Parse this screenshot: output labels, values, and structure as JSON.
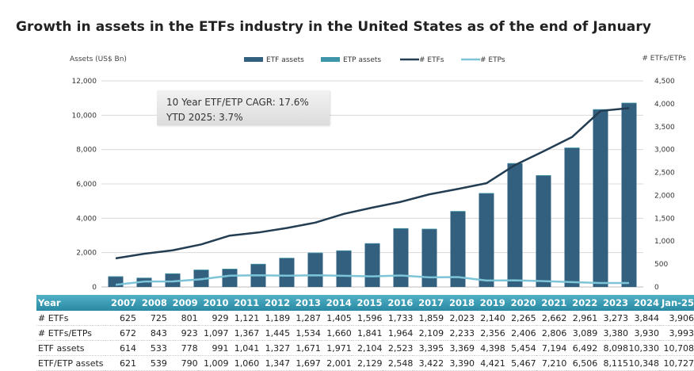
{
  "title": "Growth in assets in the ETFs industry in the United States as of the end of January",
  "annotation": {
    "line1": "10 Year ETF/ETP CAGR: 17.6%",
    "line2": "YTD 2025: 3.7%"
  },
  "colors": {
    "etf_assets": "#34607f",
    "etp_assets": "#3e94a8",
    "num_etfs": "#233d53",
    "num_etps": "#7cc4d6",
    "table_header": "#3b9db5"
  },
  "chart_data": {
    "type": "bar",
    "title": "Growth in assets in the ETFs industry in the United States as of the end of January",
    "xlabel": "",
    "ylabel": "Assets (US$ Bn)",
    "y2label": "# ETFs/ETPs",
    "ylim": [
      0,
      12000
    ],
    "y2lim": [
      0,
      4500
    ],
    "yticks": [
      "0",
      "2,000",
      "4,000",
      "6,000",
      "8,000",
      "10,000",
      "12,000"
    ],
    "yticks_values": [
      0,
      2000,
      4000,
      6000,
      8000,
      10000,
      12000
    ],
    "y2ticks": [
      "0",
      "500",
      "1,000",
      "1,500",
      "2,000",
      "2,500",
      "3,000",
      "3,500",
      "4,000",
      "4,500"
    ],
    "y2ticks_values": [
      0,
      500,
      1000,
      1500,
      2000,
      2500,
      3000,
      3500,
      4000,
      4500
    ],
    "grid": true,
    "legend": "top-center",
    "categories": [
      "2007",
      "2008",
      "2009",
      "2010",
      "2011",
      "2012",
      "2013",
      "2014",
      "2015",
      "2016",
      "2017",
      "2018",
      "2019",
      "2020",
      "2021",
      "2022",
      "2023",
      "2024",
      "Jan-25"
    ],
    "series": [
      {
        "name": "ETF assets",
        "type": "bar",
        "axis": "left",
        "values": [
          614,
          533,
          778,
          991,
          1041,
          1327,
          1671,
          1971,
          2104,
          2523,
          3395,
          3369,
          4398,
          5454,
          7194,
          6492,
          8098,
          10330,
          10708
        ]
      },
      {
        "name": "ETP assets",
        "type": "bar-stacked",
        "axis": "left",
        "values": [
          7,
          6,
          12,
          18,
          19,
          20,
          26,
          30,
          25,
          25,
          27,
          21,
          23,
          13,
          16,
          14,
          17,
          18,
          19
        ]
      },
      {
        "name": "# ETFs",
        "type": "line",
        "axis": "right",
        "values": [
          625,
          725,
          801,
          929,
          1121,
          1189,
          1287,
          1405,
          1596,
          1733,
          1859,
          2023,
          2140,
          2265,
          2662,
          2961,
          3273,
          3844,
          3906
        ]
      },
      {
        "name": "# ETPs",
        "type": "line",
        "axis": "right",
        "values": [
          47,
          118,
          122,
          168,
          246,
          256,
          247,
          255,
          245,
          231,
          250,
          210,
          216,
          141,
          144,
          128,
          107,
          86,
          87
        ]
      }
    ]
  },
  "table": {
    "header": [
      "Year",
      "2007",
      "2008",
      "2009",
      "2010",
      "2011",
      "2012",
      "2013",
      "2014",
      "2015",
      "2016",
      "2017",
      "2018",
      "2019",
      "2020",
      "2021",
      "2022",
      "2023",
      "2024",
      "Jan-25"
    ],
    "rows": [
      [
        "# ETFs",
        "625",
        "725",
        "801",
        "929",
        "1,121",
        "1,189",
        "1,287",
        "1,405",
        "1,596",
        "1,733",
        "1,859",
        "2,023",
        "2,140",
        "2,265",
        "2,662",
        "2,961",
        "3,273",
        "3,844",
        "3,906"
      ],
      [
        "# ETFs/ETPs",
        "672",
        "843",
        "923",
        "1,097",
        "1,367",
        "1,445",
        "1,534",
        "1,660",
        "1,841",
        "1,964",
        "2,109",
        "2,233",
        "2,356",
        "2,406",
        "2,806",
        "3,089",
        "3,380",
        "3,930",
        "3,993"
      ],
      [
        "ETF assets",
        "614",
        "533",
        "778",
        "991",
        "1,041",
        "1,327",
        "1,671",
        "1,971",
        "2,104",
        "2,523",
        "3,395",
        "3,369",
        "4,398",
        "5,454",
        "7,194",
        "6,492",
        "8,098",
        "10,330",
        "10,708"
      ],
      [
        "ETF/ETP assets",
        "621",
        "539",
        "790",
        "1,009",
        "1,060",
        "1,347",
        "1,697",
        "2,001",
        "2,129",
        "2,548",
        "3,422",
        "3,390",
        "4,421",
        "5,467",
        "7,210",
        "6,506",
        "8,115",
        "10,348",
        "10,727"
      ]
    ]
  }
}
